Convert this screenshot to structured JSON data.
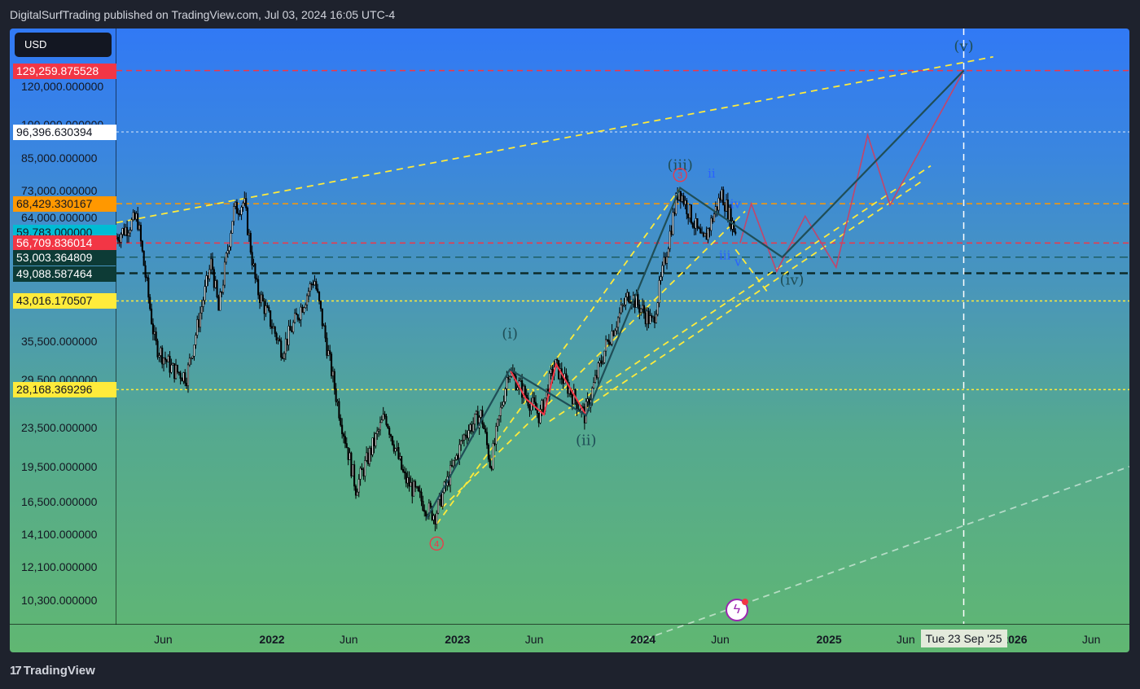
{
  "header": {
    "text": "DigitalSurfTrading published on TradingView.com, Jul 03, 2024 16:05 UTC-4"
  },
  "currency": {
    "label": "USD"
  },
  "footer": {
    "brand": "TradingView"
  },
  "colors": {
    "bg_top": "#3179f5",
    "bg_bottom": "#60b772",
    "red_line": "#f23645",
    "orange_line": "#ff9800",
    "yellow_line": "#ffeb3b",
    "dark_line": "#0d3b36",
    "wave_line": "#1f4e57",
    "alt_path": "#c2456b"
  },
  "crosshair": {
    "label": "Tue 23 Sep '25"
  },
  "chart_data": {
    "type": "candlestick",
    "symbol_quote": "USD",
    "y_scale": "log",
    "ylim": [
      9200,
      158000
    ],
    "xlim": [
      "2021-03-01",
      "2026-08-15"
    ],
    "y_ticks": [
      "140,000.000000",
      "120,000.000000",
      "100,000.000000",
      "85,000.000000",
      "73,000.000000",
      "64,000.000000",
      "35,500.000000",
      "29,500.000000",
      "23,500.000000",
      "19,500.000000",
      "16,500.000000",
      "14,100.000000",
      "12,100.000000",
      "10,300.000000"
    ],
    "y_tick_values": [
      140000,
      120000,
      100000,
      85000,
      73000,
      64000,
      35500,
      29500,
      23500,
      19500,
      16500,
      14100,
      12100,
      10300
    ],
    "x_ticks": [
      {
        "label": "Jun",
        "date": "2021-06-01",
        "bold": false
      },
      {
        "label": "2022",
        "date": "2022-01-01",
        "bold": true
      },
      {
        "label": "Jun",
        "date": "2022-06-01",
        "bold": false
      },
      {
        "label": "2023",
        "date": "2023-01-01",
        "bold": true
      },
      {
        "label": "Jun",
        "date": "2023-06-01",
        "bold": false
      },
      {
        "label": "2024",
        "date": "2024-01-01",
        "bold": true
      },
      {
        "label": "Jun",
        "date": "2024-06-01",
        "bold": false
      },
      {
        "label": "2025",
        "date": "2025-01-01",
        "bold": true
      },
      {
        "label": "Jun",
        "date": "2025-06-01",
        "bold": false
      },
      {
        "label": "2026",
        "date": "2026-01-01",
        "bold": true
      },
      {
        "label": "Jun",
        "date": "2026-06-01",
        "bold": false
      }
    ],
    "price_badges": [
      {
        "value": 129259.875528,
        "text": "129,259.875528",
        "bg": "#f23645",
        "fg": "#ffffff"
      },
      {
        "value": 96396.630394,
        "text": "96,396.630394",
        "bg": "#ffffff",
        "fg": "#131722"
      },
      {
        "value": 68429.330167,
        "text": "68,429.330167",
        "bg": "#ff9800",
        "fg": "#131722"
      },
      {
        "value": 59783.0,
        "text": "59,783.000000",
        "bg": "#00bcd4",
        "fg": "#131722",
        "sub": "03:54:11"
      },
      {
        "value": 56709.836014,
        "text": "56,709.836014",
        "bg": "#f23645",
        "fg": "#ffffff"
      },
      {
        "value": 53003.364809,
        "text": "53,003.364809",
        "bg": "#0d3b36",
        "fg": "#ffffff"
      },
      {
        "value": 49088.587464,
        "text": "49,088.587464",
        "bg": "#0d3b36",
        "fg": "#ffffff"
      },
      {
        "value": 43016.170507,
        "text": "43,016.170507",
        "bg": "#ffeb3b",
        "fg": "#131722"
      },
      {
        "value": 28168.369296,
        "text": "28,168.369296",
        "bg": "#ffeb3b",
        "fg": "#131722"
      }
    ],
    "horizontal_lines": [
      {
        "value": 129259.875528,
        "color": "#f23645",
        "dash": "7,5"
      },
      {
        "value": 96396.630394,
        "color": "rgba(255,255,255,0.55)",
        "dash": "3,3"
      },
      {
        "value": 68429.330167,
        "color": "#ff9800",
        "dash": "7,5"
      },
      {
        "value": 56709.836014,
        "color": "#f23645",
        "dash": "7,5"
      },
      {
        "value": 53003.364809,
        "color": "#1d5c63",
        "dash": "10,6"
      },
      {
        "value": 49088.587464,
        "color": "#0d2b2a",
        "dash": "10,6"
      },
      {
        "value": 43016.170507,
        "color": "#ffeb3b",
        "dash": "3,3"
      },
      {
        "value": 28168.369296,
        "color": "#ffeb3b",
        "dash": "3,3"
      }
    ],
    "price_path": [
      [
        "2021-03-01",
        58000
      ],
      [
        "2021-04-14",
        64000
      ],
      [
        "2021-05-19",
        35000
      ],
      [
        "2021-06-22",
        31000
      ],
      [
        "2021-07-20",
        30000
      ],
      [
        "2021-09-07",
        52000
      ],
      [
        "2021-09-21",
        41000
      ],
      [
        "2021-10-20",
        66000
      ],
      [
        "2021-11-10",
        69000
      ],
      [
        "2021-12-04",
        46000
      ],
      [
        "2022-01-24",
        34000
      ],
      [
        "2022-03-28",
        48000
      ],
      [
        "2022-05-12",
        26700
      ],
      [
        "2022-06-18",
        17600
      ],
      [
        "2022-08-15",
        25000
      ],
      [
        "2022-09-21",
        18500
      ],
      [
        "2022-11-09",
        15800
      ],
      [
        "2022-11-21",
        15500
      ],
      [
        "2023-01-20",
        23000
      ],
      [
        "2023-02-20",
        25000
      ],
      [
        "2023-03-10",
        19600
      ],
      [
        "2023-04-14",
        31000
      ],
      [
        "2023-06-15",
        24800
      ],
      [
        "2023-07-14",
        31800
      ],
      [
        "2023-09-11",
        24900
      ],
      [
        "2023-10-24",
        35000
      ],
      [
        "2023-12-08",
        44700
      ],
      [
        "2024-01-23",
        38500
      ],
      [
        "2024-03-14",
        73800
      ],
      [
        "2024-05-01",
        56500
      ],
      [
        "2024-06-07",
        71900
      ],
      [
        "2024-07-03",
        60000
      ]
    ],
    "wave_path": [
      [
        "2022-11-01",
        15200
      ],
      [
        "2023-04-14",
        31000
      ],
      [
        "2023-09-11",
        24900
      ],
      [
        "2024-03-14",
        73800
      ],
      [
        "2024-10-01",
        53000
      ],
      [
        "2025-09-23",
        129259
      ]
    ],
    "alt_path": [
      [
        "2024-07-10",
        56709
      ],
      [
        "2024-08-01",
        68400
      ],
      [
        "2024-09-20",
        49500
      ],
      [
        "2024-11-15",
        64500
      ],
      [
        "2025-01-15",
        50500
      ],
      [
        "2025-03-18",
        95000
      ],
      [
        "2025-05-01",
        68000
      ],
      [
        "2025-09-23",
        129259
      ]
    ],
    "sub_wave_path": [
      [
        "2023-04-14",
        31000
      ],
      [
        "2023-05-15",
        27000
      ],
      [
        "2023-06-20",
        25000
      ],
      [
        "2023-07-14",
        31800
      ],
      [
        "2023-09-11",
        24900
      ]
    ],
    "wave_labels": [
      {
        "text": "(i)",
        "date": "2023-04-14",
        "price": 36000,
        "color": "#1f4e57"
      },
      {
        "text": "(ii)",
        "date": "2023-09-11",
        "price": 21600,
        "color": "#1f4e57"
      },
      {
        "text": "(iii)",
        "date": "2024-03-14",
        "price": 80500,
        "color": "#1f4e57"
      },
      {
        "text": "(iv)",
        "date": "2024-10-20",
        "price": 46500,
        "color": "#1f4e57"
      },
      {
        "text": "(v)",
        "date": "2025-09-23",
        "price": 142000,
        "color": "#1f4e57"
      },
      {
        "text": "ii",
        "date": "2024-05-15",
        "price": 77500,
        "color": "#2962ff"
      },
      {
        "text": "iv",
        "date": "2024-07-01",
        "price": 67000,
        "color": "#2962ff"
      },
      {
        "text": "iii",
        "date": "2024-06-10",
        "price": 52500,
        "color": "#2962ff"
      },
      {
        "text": "v",
        "date": "2024-07-06",
        "price": 50800,
        "color": "#2962ff"
      }
    ],
    "circle_labels": [
      {
        "text": "4",
        "date": "2022-11-21",
        "price": 13500,
        "color": "#f23645"
      },
      {
        "text": "3",
        "date": "2024-03-14",
        "price": 78500,
        "color": "#f23645"
      }
    ],
    "trend_lines": [
      {
        "from": [
          "2021-03-01",
          62500
        ],
        "to": [
          "2025-11-20",
          138000
        ],
        "color": "#ffeb3b",
        "dash": "8,6"
      },
      {
        "from": [
          "2022-11-21",
          14800
        ],
        "to": [
          "2024-03-14",
          73800
        ],
        "color": "#ffeb3b",
        "dash": "8,6"
      },
      {
        "from": [
          "2022-12-01",
          16000
        ],
        "to": [
          "2024-07-20",
          66000
        ],
        "color": "#ffeb3b",
        "dash": "8,6"
      },
      {
        "from": [
          "2023-07-01",
          24200
        ],
        "to": [
          "2025-07-20",
          82000
        ],
        "color": "#ffeb3b",
        "dash": "8,6"
      },
      {
        "from": [
          "2023-08-20",
          24900
        ],
        "to": [
          "2025-07-01",
          76000
        ],
        "color": "#ffeb3b",
        "dash": "8,6"
      },
      {
        "from": [
          "2024-07-01",
          55000
        ],
        "to": [
          "2024-09-01",
          45000
        ],
        "color": "#ffeb3b",
        "dash": "8,6"
      },
      {
        "from": [
          "2023-12-15",
          8400
        ],
        "to": [
          "2026-08-15",
          19500
        ],
        "color": "rgba(255,255,255,0.55)",
        "dash": "8,6"
      }
    ],
    "vertical_line": {
      "date": "2025-09-23",
      "color": "#ffffff",
      "dash": "8,6"
    }
  }
}
